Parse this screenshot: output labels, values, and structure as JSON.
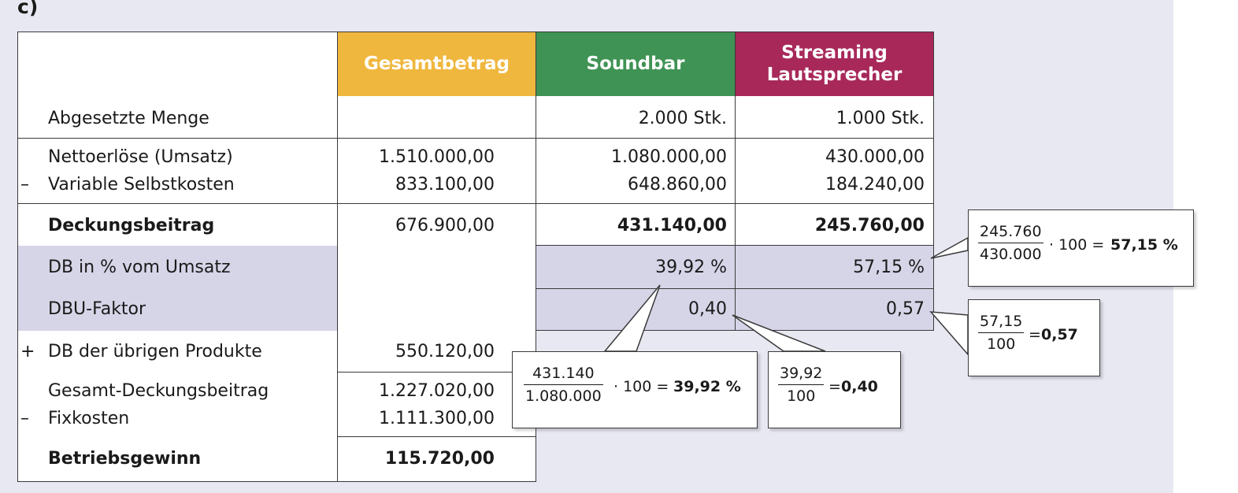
{
  "task_label": "c)",
  "headers": {
    "total": "Gesamtbetrag",
    "soundbar": "Soundbar",
    "streaming_line1": "Streaming",
    "streaming_line2": "Lautsprecher"
  },
  "colors": {
    "total": "#f0b73e",
    "soundbar": "#3f9354",
    "streaming": "#a8285a",
    "highlight": "#d6d5e8",
    "panel": "#e8e8f3"
  },
  "rows": {
    "menge": {
      "label": "Abgesetzte Menge",
      "soundbar": "2.000 Stk.",
      "streaming": "1.000 Stk."
    },
    "erloese": {
      "prefix": "",
      "label": "Nettoerlöse (Umsatz)",
      "total": "1.510.000,00",
      "soundbar": "1.080.000,00",
      "streaming": "430.000,00"
    },
    "varkosten": {
      "prefix": "–",
      "label": "Variable Selbstkosten",
      "total": "833.100,00",
      "soundbar": "648.860,00",
      "streaming": "184.240,00"
    },
    "db": {
      "label": "Deckungsbeitrag",
      "total": "676.900,00",
      "soundbar": "431.140,00",
      "streaming": "245.760,00"
    },
    "db_prozent": {
      "label": "DB in % vom Umsatz",
      "soundbar": "39,92 %",
      "streaming": "57,15 %"
    },
    "dbu": {
      "label": "DBU-Faktor",
      "soundbar": "0,40",
      "streaming": "0,57"
    },
    "db_uebrige": {
      "prefix": "+",
      "label": "DB der übrigen Produkte",
      "total": "550.120,00"
    },
    "gesamt_db": {
      "label": "Gesamt-Deckungsbeitrag",
      "total": "1.227.020,00"
    },
    "fixkosten": {
      "prefix": "–",
      "label": "Fixkosten",
      "total": "1.111.300,00"
    },
    "gewinn": {
      "label": "Betriebsgewinn",
      "total": "115.720,00"
    }
  },
  "callouts": {
    "streaming_pct": {
      "num": "245.760",
      "den": "430.000",
      "mult": "· 100 =",
      "result": "57,15 %"
    },
    "streaming_dbu": {
      "num": "57,15",
      "den": "100",
      "eq": "=",
      "result": "0,57"
    },
    "soundbar_pct": {
      "num": "431.140",
      "den": "1.080.000",
      "mult": "· 100 =",
      "result": "39,92 %"
    },
    "soundbar_dbu": {
      "num": "39,92",
      "den": "100",
      "eq": "=",
      "result": "0,40"
    }
  }
}
